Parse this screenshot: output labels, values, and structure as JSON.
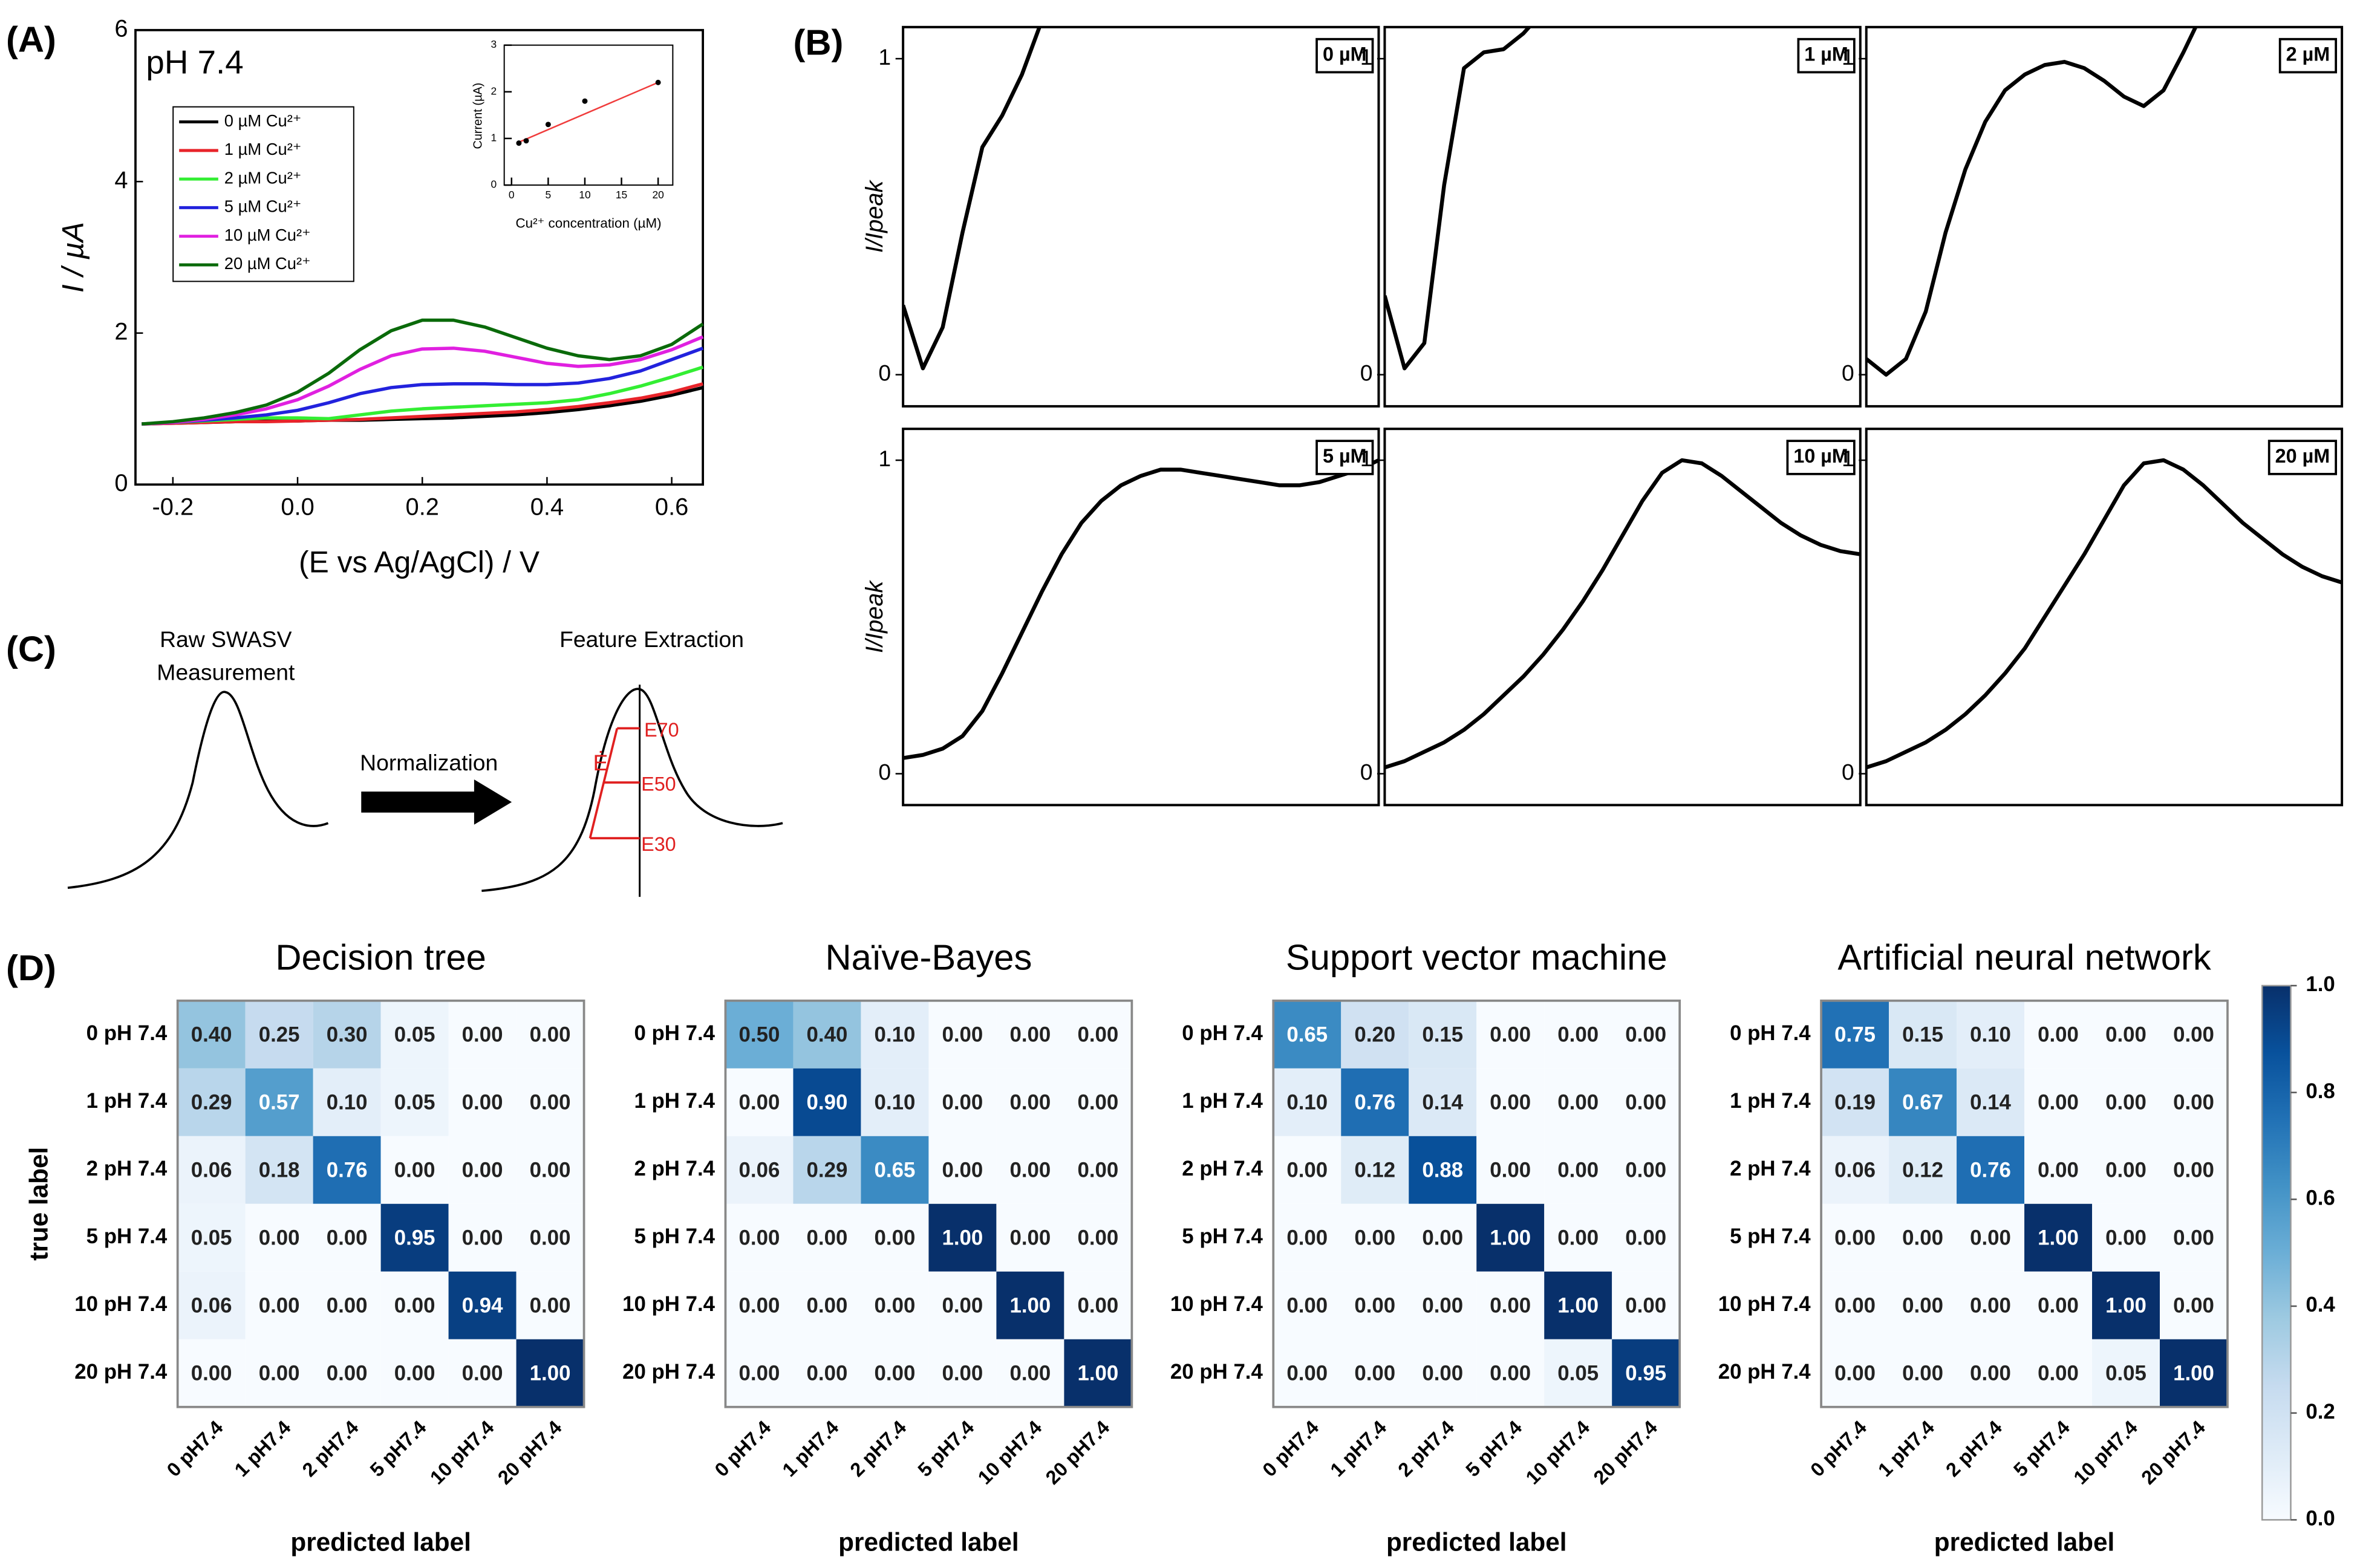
{
  "chart_data": [
    {
      "type": "line",
      "panel_label": "(A)",
      "title": "pH 7.4",
      "xlabel": "(E vs Ag/AgCl) / V",
      "ylabel": "I / µA",
      "xlim": [
        -0.26,
        0.65
      ],
      "ylim": [
        0,
        6
      ],
      "xticks": [
        -0.2,
        {
          "value": 0,
          "label": "0.0"
        },
        0.2,
        0.4,
        0.6
      ],
      "yticks": [
        0,
        2,
        4,
        6
      ],
      "legend": "upper left",
      "x": [
        -0.25,
        -0.2,
        -0.15,
        -0.1,
        -0.05,
        0,
        0.05,
        0.1,
        0.15,
        0.2,
        0.25,
        0.3,
        0.35,
        0.4,
        0.45,
        0.5,
        0.55,
        0.6,
        0.65
      ],
      "series": [
        {
          "name": "0 µM Cu²⁺",
          "color": "#000000",
          "values": [
            0.8,
            0.81,
            0.82,
            0.83,
            0.84,
            0.84,
            0.85,
            0.85,
            0.86,
            0.87,
            0.88,
            0.9,
            0.92,
            0.95,
            0.99,
            1.04,
            1.1,
            1.18,
            1.28
          ]
        },
        {
          "name": "1 µM Cu²⁺",
          "color": "#e8242a",
          "values": [
            0.8,
            0.81,
            0.82,
            0.83,
            0.83,
            0.84,
            0.85,
            0.86,
            0.88,
            0.9,
            0.92,
            0.94,
            0.96,
            0.99,
            1.03,
            1.08,
            1.14,
            1.22,
            1.33
          ]
        },
        {
          "name": "2 µM Cu²⁺",
          "color": "#33ee33",
          "values": [
            0.8,
            0.82,
            0.84,
            0.86,
            0.88,
            0.88,
            0.87,
            0.92,
            0.97,
            1.0,
            1.02,
            1.04,
            1.06,
            1.08,
            1.12,
            1.2,
            1.3,
            1.42,
            1.55
          ]
        },
        {
          "name": "5 µM Cu²⁺",
          "color": "#2222dd",
          "values": [
            0.8,
            0.82,
            0.85,
            0.88,
            0.92,
            0.98,
            1.08,
            1.2,
            1.28,
            1.32,
            1.33,
            1.33,
            1.32,
            1.32,
            1.34,
            1.4,
            1.5,
            1.65,
            1.8
          ]
        },
        {
          "name": "10 µM Cu²⁺",
          "color": "#e020e0",
          "values": [
            0.8,
            0.82,
            0.86,
            0.92,
            1.0,
            1.12,
            1.3,
            1.52,
            1.7,
            1.79,
            1.8,
            1.76,
            1.68,
            1.6,
            1.56,
            1.58,
            1.65,
            1.78,
            1.95
          ]
        },
        {
          "name": "20 µM Cu²⁺",
          "color": "#0a6a0a",
          "values": [
            0.8,
            0.83,
            0.88,
            0.95,
            1.05,
            1.22,
            1.47,
            1.78,
            2.03,
            2.17,
            2.17,
            2.08,
            1.94,
            1.8,
            1.7,
            1.65,
            1.7,
            1.85,
            2.12
          ]
        }
      ]
    },
    {
      "type": "scatter",
      "xlabel": "Cu²⁺ concentration (µM)",
      "ylabel": "Current (µA)",
      "xlim": [
        -1,
        22
      ],
      "ylim": [
        0,
        3
      ],
      "xticks": [
        0,
        5,
        10,
        15,
        20
      ],
      "yticks": [
        0,
        1,
        2,
        3
      ],
      "x": [
        1,
        2,
        5,
        10,
        20
      ],
      "values": [
        0.9,
        0.95,
        1.3,
        1.8,
        2.2
      ],
      "color": "#000000",
      "fit": {
        "x": [
          1,
          20
        ],
        "values": [
          0.92,
          2.2
        ],
        "color": "#f03c3c"
      }
    },
    {
      "type": "line",
      "panel_label": "(B)",
      "ylabel": "I/Ipeak",
      "label": "0 µM",
      "ylim": [
        -0.1,
        1.1
      ],
      "yticks": [
        0,
        1
      ],
      "color": "#000000",
      "values": [
        0.22,
        0.02,
        0.15,
        0.45,
        0.72,
        0.82,
        0.95,
        1.12,
        null,
        null,
        null,
        null,
        null,
        null,
        null,
        null,
        null,
        null,
        null,
        null,
        null,
        null,
        null,
        null,
        null
      ]
    },
    {
      "type": "line",
      "label": "1 µM",
      "ylim": [
        -0.1,
        1.1
      ],
      "yticks": [
        0,
        1
      ],
      "color": "#000000",
      "values": [
        0.25,
        0.02,
        0.1,
        0.6,
        0.97,
        1.02,
        1.03,
        1.08,
        1.15,
        null,
        null,
        null,
        null,
        null,
        null,
        null,
        null,
        null,
        null,
        null,
        null,
        null,
        null,
        null,
        null
      ]
    },
    {
      "type": "line",
      "label": "2 µM",
      "ylim": [
        -0.1,
        1.1
      ],
      "yticks": [
        0,
        1
      ],
      "color": "#000000",
      "values": [
        0.05,
        0.0,
        0.05,
        0.2,
        0.45,
        0.65,
        0.8,
        0.9,
        0.95,
        0.98,
        0.99,
        0.97,
        0.93,
        0.88,
        0.85,
        0.9,
        1.02,
        1.15,
        null,
        null,
        null,
        null,
        null,
        null,
        null
      ]
    },
    {
      "type": "line",
      "ylabel": "I/Ipeak",
      "label": "5 µM",
      "ylim": [
        -0.1,
        1.1
      ],
      "yticks": [
        0,
        1
      ],
      "color": "#000000",
      "values": [
        0.05,
        0.06,
        0.08,
        0.12,
        0.2,
        0.32,
        0.45,
        0.58,
        0.7,
        0.8,
        0.87,
        0.92,
        0.95,
        0.97,
        0.97,
        0.96,
        0.95,
        0.94,
        0.93,
        0.92,
        0.92,
        0.93,
        0.95,
        0.97,
        1.0
      ]
    },
    {
      "type": "line",
      "label": "10 µM",
      "ylim": [
        -0.1,
        1.1
      ],
      "yticks": [
        0,
        1
      ],
      "color": "#000000",
      "values": [
        0.02,
        0.04,
        0.07,
        0.1,
        0.14,
        0.19,
        0.25,
        0.31,
        0.38,
        0.46,
        0.55,
        0.65,
        0.76,
        0.87,
        0.96,
        1.0,
        0.99,
        0.95,
        0.9,
        0.85,
        0.8,
        0.76,
        0.73,
        0.71,
        0.7
      ]
    },
    {
      "type": "line",
      "label": "20 µM",
      "ylim": [
        -0.1,
        1.1
      ],
      "yticks": [
        0,
        1
      ],
      "color": "#000000",
      "values": [
        0.02,
        0.04,
        0.07,
        0.1,
        0.14,
        0.19,
        0.25,
        0.32,
        0.4,
        0.5,
        0.6,
        0.7,
        0.81,
        0.92,
        0.99,
        1.0,
        0.97,
        0.92,
        0.86,
        0.8,
        0.75,
        0.7,
        0.66,
        0.63,
        0.61
      ]
    },
    {
      "type": "heatmap",
      "panel_label": "(D)",
      "title": "Decision tree",
      "xlabel": "predicted label",
      "ylabel": "true label",
      "row_labels": [
        "0 pH 7.4",
        "1 pH 7.4",
        "2 pH 7.4",
        "5 pH 7.4",
        "10 pH 7.4",
        "20 pH 7.4"
      ],
      "col_labels": [
        "0 pH7.4",
        "1 pH7.4",
        "2 pH7.4",
        "5 pH7.4",
        "10 pH7.4",
        "20 pH7.4"
      ],
      "clim": [
        0,
        1
      ],
      "colormap": [
        "#f7fbff",
        "#deebf7",
        "#c6dbef",
        "#9ecae1",
        "#6baed6",
        "#4292c6",
        "#2171b5",
        "#08519c",
        "#08306b"
      ],
      "values": [
        [
          0.4,
          0.25,
          0.3,
          0.05,
          0,
          0
        ],
        [
          0.29,
          0.57,
          0.1,
          0.05,
          0,
          0
        ],
        [
          0.06,
          0.18,
          0.76,
          0,
          0,
          0
        ],
        [
          0.05,
          0,
          0,
          0.95,
          0,
          0
        ],
        [
          0.06,
          0,
          0,
          0,
          0.94,
          0
        ],
        [
          0,
          0,
          0,
          0,
          0,
          1
        ]
      ],
      "value_labels": [
        [
          "0.40",
          "0.25",
          "0.30",
          "0.05",
          "0.00",
          "0.00"
        ],
        [
          "0.29",
          "0.57",
          "0.10",
          "0.05",
          "0.00",
          "0.00"
        ],
        [
          "0.06",
          "0.18",
          "0.76",
          "0.00",
          "0.00",
          "0.00"
        ],
        [
          "0.05",
          "0.00",
          "0.00",
          "0.95",
          "0.00",
          "0.00"
        ],
        [
          "0.06",
          "0.00",
          "0.00",
          "0.00",
          "0.94",
          "0.00"
        ],
        [
          "0.00",
          "0.00",
          "0.00",
          "0.00",
          "0.00",
          "1.00"
        ]
      ]
    },
    {
      "type": "heatmap",
      "title": "Naïve-Bayes",
      "xlabel": "predicted label",
      "row_labels": [
        "0 pH 7.4",
        "1 pH 7.4",
        "2 pH 7.4",
        "5 pH 7.4",
        "10 pH 7.4",
        "20 pH 7.4"
      ],
      "col_labels": [
        "0 pH7.4",
        "1 pH7.4",
        "2 pH7.4",
        "5 pH7.4",
        "10 pH7.4",
        "20 pH7.4"
      ],
      "clim": [
        0,
        1
      ],
      "colormap": [
        "#f7fbff",
        "#deebf7",
        "#c6dbef",
        "#9ecae1",
        "#6baed6",
        "#4292c6",
        "#2171b5",
        "#08519c",
        "#08306b"
      ],
      "values": [
        [
          0.5,
          0.4,
          0.1,
          0,
          0,
          0
        ],
        [
          0,
          0.9,
          0.1,
          0,
          0,
          0
        ],
        [
          0.06,
          0.29,
          0.65,
          0,
          0,
          0
        ],
        [
          0,
          0,
          0,
          1,
          0,
          0
        ],
        [
          0,
          0,
          0,
          0,
          1,
          0
        ],
        [
          0,
          0,
          0,
          0,
          0,
          1
        ]
      ],
      "value_labels": [
        [
          "0.50",
          "0.40",
          "0.10",
          "0.00",
          "0.00",
          "0.00"
        ],
        [
          "0.00",
          "0.90",
          "0.10",
          "0.00",
          "0.00",
          "0.00"
        ],
        [
          "0.06",
          "0.29",
          "0.65",
          "0.00",
          "0.00",
          "0.00"
        ],
        [
          "0.00",
          "0.00",
          "0.00",
          "1.00",
          "0.00",
          "0.00"
        ],
        [
          "0.00",
          "0.00",
          "0.00",
          "0.00",
          "1.00",
          "0.00"
        ],
        [
          "0.00",
          "0.00",
          "0.00",
          "0.00",
          "0.00",
          "1.00"
        ]
      ]
    },
    {
      "type": "heatmap",
      "title": "Support vector machine",
      "xlabel": "predicted label",
      "row_labels": [
        "0 pH 7.4",
        "1 pH 7.4",
        "2 pH 7.4",
        "5 pH 7.4",
        "10 pH 7.4",
        "20 pH 7.4"
      ],
      "col_labels": [
        "0 pH7.4",
        "1 pH7.4",
        "2 pH7.4",
        "5 pH7.4",
        "10 pH7.4",
        "20 pH7.4"
      ],
      "clim": [
        0,
        1
      ],
      "colormap": [
        "#f7fbff",
        "#deebf7",
        "#c6dbef",
        "#9ecae1",
        "#6baed6",
        "#4292c6",
        "#2171b5",
        "#08519c",
        "#08306b"
      ],
      "values": [
        [
          0.65,
          0.2,
          0.15,
          0,
          0,
          0
        ],
        [
          0.1,
          0.76,
          0.14,
          0,
          0,
          0
        ],
        [
          0,
          0.12,
          0.88,
          0,
          0,
          0
        ],
        [
          0,
          0,
          0,
          1,
          0,
          0
        ],
        [
          0,
          0,
          0,
          0,
          1,
          0
        ],
        [
          0,
          0,
          0,
          0,
          0.05,
          0.95
        ]
      ],
      "value_labels": [
        [
          "0.65",
          "0.20",
          "0.15",
          "0.00",
          "0.00",
          "0.00"
        ],
        [
          "0.10",
          "0.76",
          "0.14",
          "0.00",
          "0.00",
          "0.00"
        ],
        [
          "0.00",
          "0.12",
          "0.88",
          "0.00",
          "0.00",
          "0.00"
        ],
        [
          "0.00",
          "0.00",
          "0.00",
          "1.00",
          "0.00",
          "0.00"
        ],
        [
          "0.00",
          "0.00",
          "0.00",
          "0.00",
          "1.00",
          "0.00"
        ],
        [
          "0.00",
          "0.00",
          "0.00",
          "0.00",
          "0.05",
          "0.95"
        ]
      ]
    },
    {
      "type": "heatmap",
      "title": "Artificial neural network",
      "xlabel": "predicted label",
      "row_labels": [
        "0 pH 7.4",
        "1 pH 7.4",
        "2 pH 7.4",
        "5 pH 7.4",
        "10 pH 7.4",
        "20 pH 7.4"
      ],
      "col_labels": [
        "0 pH7.4",
        "1 pH7.4",
        "2 pH7.4",
        "5 pH7.4",
        "10 pH7.4",
        "20 pH7.4"
      ],
      "clim": [
        0,
        1
      ],
      "colormap": [
        "#f7fbff",
        "#deebf7",
        "#c6dbef",
        "#9ecae1",
        "#6baed6",
        "#4292c6",
        "#2171b5",
        "#08519c",
        "#08306b"
      ],
      "values": [
        [
          0.75,
          0.15,
          0.1,
          0,
          0,
          0
        ],
        [
          0.19,
          0.67,
          0.14,
          0,
          0,
          0
        ],
        [
          0.06,
          0.12,
          0.76,
          0,
          0,
          0
        ],
        [
          0,
          0,
          0,
          1,
          0,
          0
        ],
        [
          0,
          0,
          0,
          0,
          1,
          0
        ],
        [
          0,
          0,
          0,
          0,
          0.05,
          1
        ]
      ],
      "value_labels": [
        [
          "0.75",
          "0.15",
          "0.10",
          "0.00",
          "0.00",
          "0.00"
        ],
        [
          "0.19",
          "0.67",
          "0.14",
          "0.00",
          "0.00",
          "0.00"
        ],
        [
          "0.06",
          "0.12",
          "0.76",
          "0.00",
          "0.00",
          "0.00"
        ],
        [
          "0.00",
          "0.00",
          "0.00",
          "1.00",
          "0.00",
          "0.00"
        ],
        [
          "0.00",
          "0.00",
          "0.00",
          "0.00",
          "1.00",
          "0.00"
        ],
        [
          "0.00",
          "0.00",
          "0.00",
          "0.00",
          "0.05",
          "1.00"
        ]
      ],
      "colorbar_ticks": [
        {
          "value": 0,
          "label": "0.0"
        },
        0.2,
        0.4,
        0.6,
        0.8,
        {
          "value": 1,
          "label": "1.0"
        }
      ]
    }
  ],
  "panel_c": {
    "panel_label": "(C)",
    "raw_label": [
      "Raw SWASV",
      "Measurement"
    ],
    "arrow_label": "Normalization",
    "feature_label": "Feature Extraction",
    "slope_label": "Ė",
    "levels": [
      "E70",
      "E50",
      "E30"
    ]
  }
}
